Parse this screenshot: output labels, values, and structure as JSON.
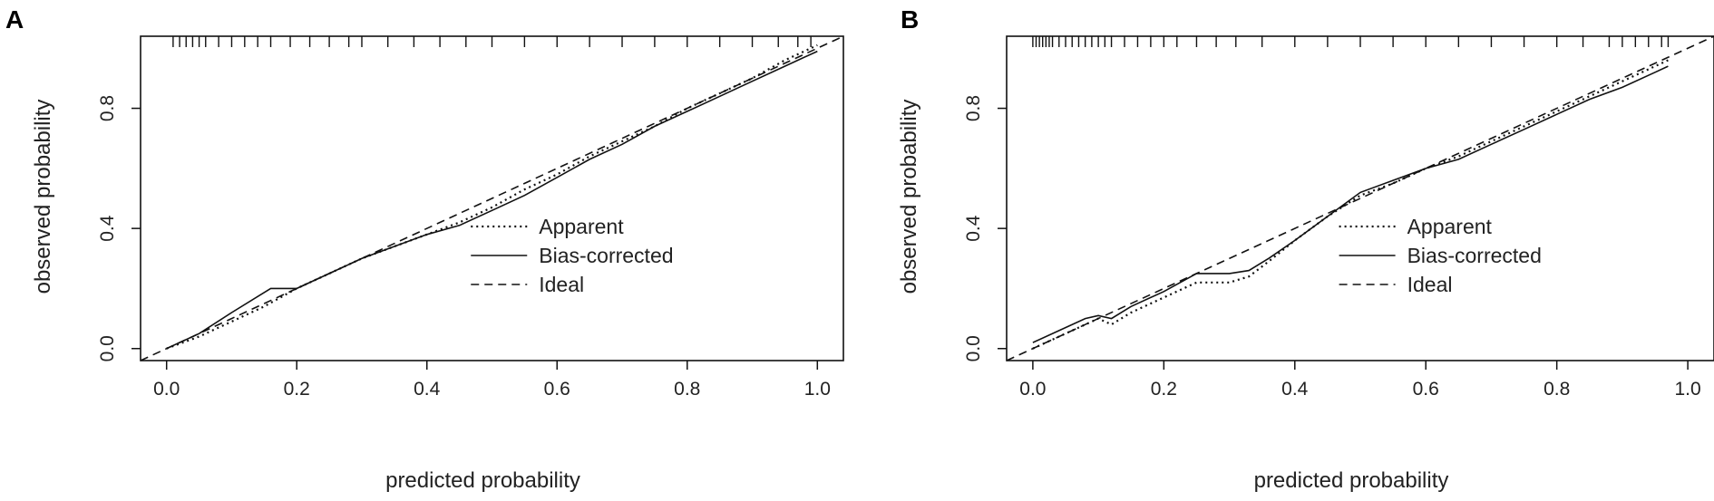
{
  "panels": [
    {
      "letter": "A"
    },
    {
      "letter": "B"
    }
  ],
  "chart_data": [
    {
      "type": "line",
      "panel": "A",
      "xlabel": "predicted probability",
      "ylabel": "observed probability",
      "xlim": [
        -0.04,
        1.04
      ],
      "ylim": [
        -0.04,
        1.04
      ],
      "xticks": [
        0.0,
        0.2,
        0.4,
        0.6,
        0.8,
        1.0
      ],
      "xtick_labels": [
        "0.0",
        "0.2",
        "0.4",
        "0.6",
        "0.8",
        "1.0"
      ],
      "yticks": [
        0.0,
        0.4,
        0.8
      ],
      "ytick_labels": [
        "0.0",
        "0.4",
        "0.8"
      ],
      "legend_position": "right",
      "rug": [
        0.01,
        0.02,
        0.03,
        0.04,
        0.05,
        0.06,
        0.08,
        0.1,
        0.12,
        0.14,
        0.16,
        0.19,
        0.22,
        0.25,
        0.28,
        0.3,
        0.34,
        0.38,
        0.42,
        0.46,
        0.5,
        0.55,
        0.6,
        0.65,
        0.7,
        0.75,
        0.8,
        0.85,
        0.9,
        0.94,
        0.97,
        0.99
      ],
      "series": [
        {
          "name": "Apparent",
          "style": "dotted",
          "x": [
            0.0,
            0.05,
            0.1,
            0.15,
            0.2,
            0.25,
            0.3,
            0.35,
            0.4,
            0.45,
            0.5,
            0.55,
            0.6,
            0.65,
            0.7,
            0.75,
            0.8,
            0.85,
            0.9,
            0.95,
            1.0
          ],
          "y": [
            0.0,
            0.04,
            0.09,
            0.14,
            0.2,
            0.25,
            0.3,
            0.34,
            0.38,
            0.42,
            0.47,
            0.53,
            0.58,
            0.64,
            0.69,
            0.74,
            0.8,
            0.85,
            0.9,
            0.96,
            1.01
          ]
        },
        {
          "name": "Bias-corrected",
          "style": "solid",
          "x": [
            0.0,
            0.05,
            0.1,
            0.16,
            0.2,
            0.25,
            0.3,
            0.35,
            0.4,
            0.45,
            0.5,
            0.55,
            0.6,
            0.65,
            0.7,
            0.75,
            0.8,
            0.85,
            0.9,
            0.95,
            1.0
          ],
          "y": [
            0.0,
            0.05,
            0.12,
            0.2,
            0.2,
            0.25,
            0.3,
            0.34,
            0.38,
            0.41,
            0.46,
            0.51,
            0.57,
            0.63,
            0.68,
            0.74,
            0.79,
            0.84,
            0.89,
            0.94,
            0.99
          ]
        },
        {
          "name": "Ideal",
          "style": "dashed",
          "x": [
            -0.04,
            1.04
          ],
          "y": [
            -0.04,
            1.04
          ]
        }
      ]
    },
    {
      "type": "line",
      "panel": "B",
      "xlabel": "predicted probability",
      "ylabel": "observed probability",
      "xlim": [
        -0.04,
        1.04
      ],
      "ylim": [
        -0.04,
        1.04
      ],
      "xticks": [
        0.0,
        0.2,
        0.4,
        0.6,
        0.8,
        1.0
      ],
      "xtick_labels": [
        "0.0",
        "0.2",
        "0.4",
        "0.6",
        "0.8",
        "1.0"
      ],
      "yticks": [
        0.0,
        0.4,
        0.8
      ],
      "ytick_labels": [
        "0.0",
        "0.4",
        "0.8"
      ],
      "legend_position": "right",
      "rug": [
        0.0,
        0.005,
        0.01,
        0.015,
        0.02,
        0.025,
        0.03,
        0.04,
        0.05,
        0.06,
        0.07,
        0.08,
        0.09,
        0.1,
        0.11,
        0.12,
        0.14,
        0.16,
        0.18,
        0.2,
        0.22,
        0.25,
        0.28,
        0.31,
        0.35,
        0.4,
        0.45,
        0.5,
        0.55,
        0.6,
        0.65,
        0.7,
        0.75,
        0.8,
        0.84,
        0.88,
        0.9,
        0.92,
        0.94,
        0.96,
        0.97
      ],
      "series": [
        {
          "name": "Apparent",
          "style": "dotted",
          "x": [
            0.0,
            0.04,
            0.08,
            0.1,
            0.12,
            0.15,
            0.2,
            0.25,
            0.3,
            0.33,
            0.36,
            0.4,
            0.45,
            0.5,
            0.55,
            0.6,
            0.65,
            0.7,
            0.75,
            0.8,
            0.85,
            0.9,
            0.95,
            0.97
          ],
          "y": [
            0.0,
            0.04,
            0.08,
            0.1,
            0.08,
            0.12,
            0.17,
            0.22,
            0.22,
            0.24,
            0.29,
            0.36,
            0.44,
            0.51,
            0.55,
            0.6,
            0.64,
            0.69,
            0.74,
            0.79,
            0.84,
            0.89,
            0.94,
            0.96
          ]
        },
        {
          "name": "Bias-corrected",
          "style": "solid",
          "x": [
            0.0,
            0.04,
            0.08,
            0.1,
            0.12,
            0.15,
            0.2,
            0.25,
            0.3,
            0.33,
            0.36,
            0.4,
            0.45,
            0.5,
            0.55,
            0.6,
            0.65,
            0.7,
            0.75,
            0.8,
            0.85,
            0.9,
            0.95,
            0.97
          ],
          "y": [
            0.02,
            0.06,
            0.1,
            0.11,
            0.1,
            0.14,
            0.19,
            0.25,
            0.25,
            0.26,
            0.3,
            0.36,
            0.44,
            0.52,
            0.56,
            0.6,
            0.63,
            0.68,
            0.73,
            0.78,
            0.83,
            0.87,
            0.92,
            0.94
          ]
        },
        {
          "name": "Ideal",
          "style": "dashed",
          "x": [
            -0.04,
            1.04
          ],
          "y": [
            -0.04,
            1.04
          ]
        }
      ]
    }
  ]
}
